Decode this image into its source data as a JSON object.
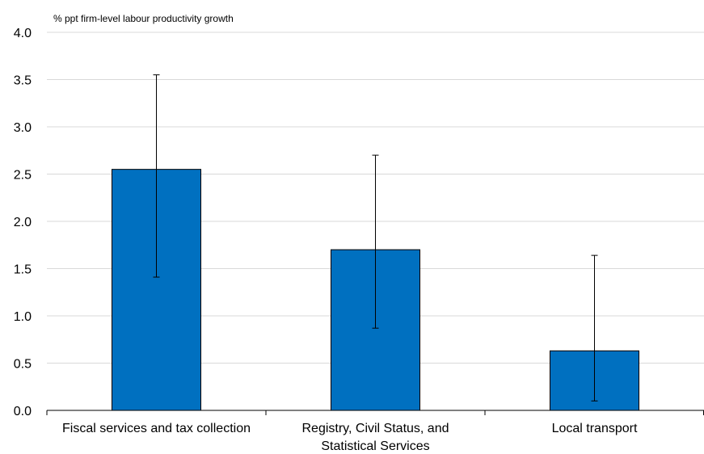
{
  "chart_data": {
    "type": "bar",
    "ylabel": "% ppt firm-level labour productivity growth",
    "categories": [
      [
        "Fiscal services and tax collection"
      ],
      [
        "Registry, Civil Status, and",
        "Statistical Services"
      ],
      [
        "Local transport"
      ]
    ],
    "values": [
      2.55,
      1.7,
      0.63
    ],
    "error_low": [
      1.41,
      0.87,
      0.1
    ],
    "error_high": [
      3.55,
      2.7,
      1.64
    ],
    "ylim": [
      0.0,
      4.0
    ],
    "yticks": [
      "0.0",
      "0.5",
      "1.0",
      "1.5",
      "2.0",
      "2.5",
      "3.0",
      "3.5",
      "4.0"
    ],
    "grid": true,
    "bar_color": "#0070C0",
    "grid_color": "#D9D9D9"
  }
}
